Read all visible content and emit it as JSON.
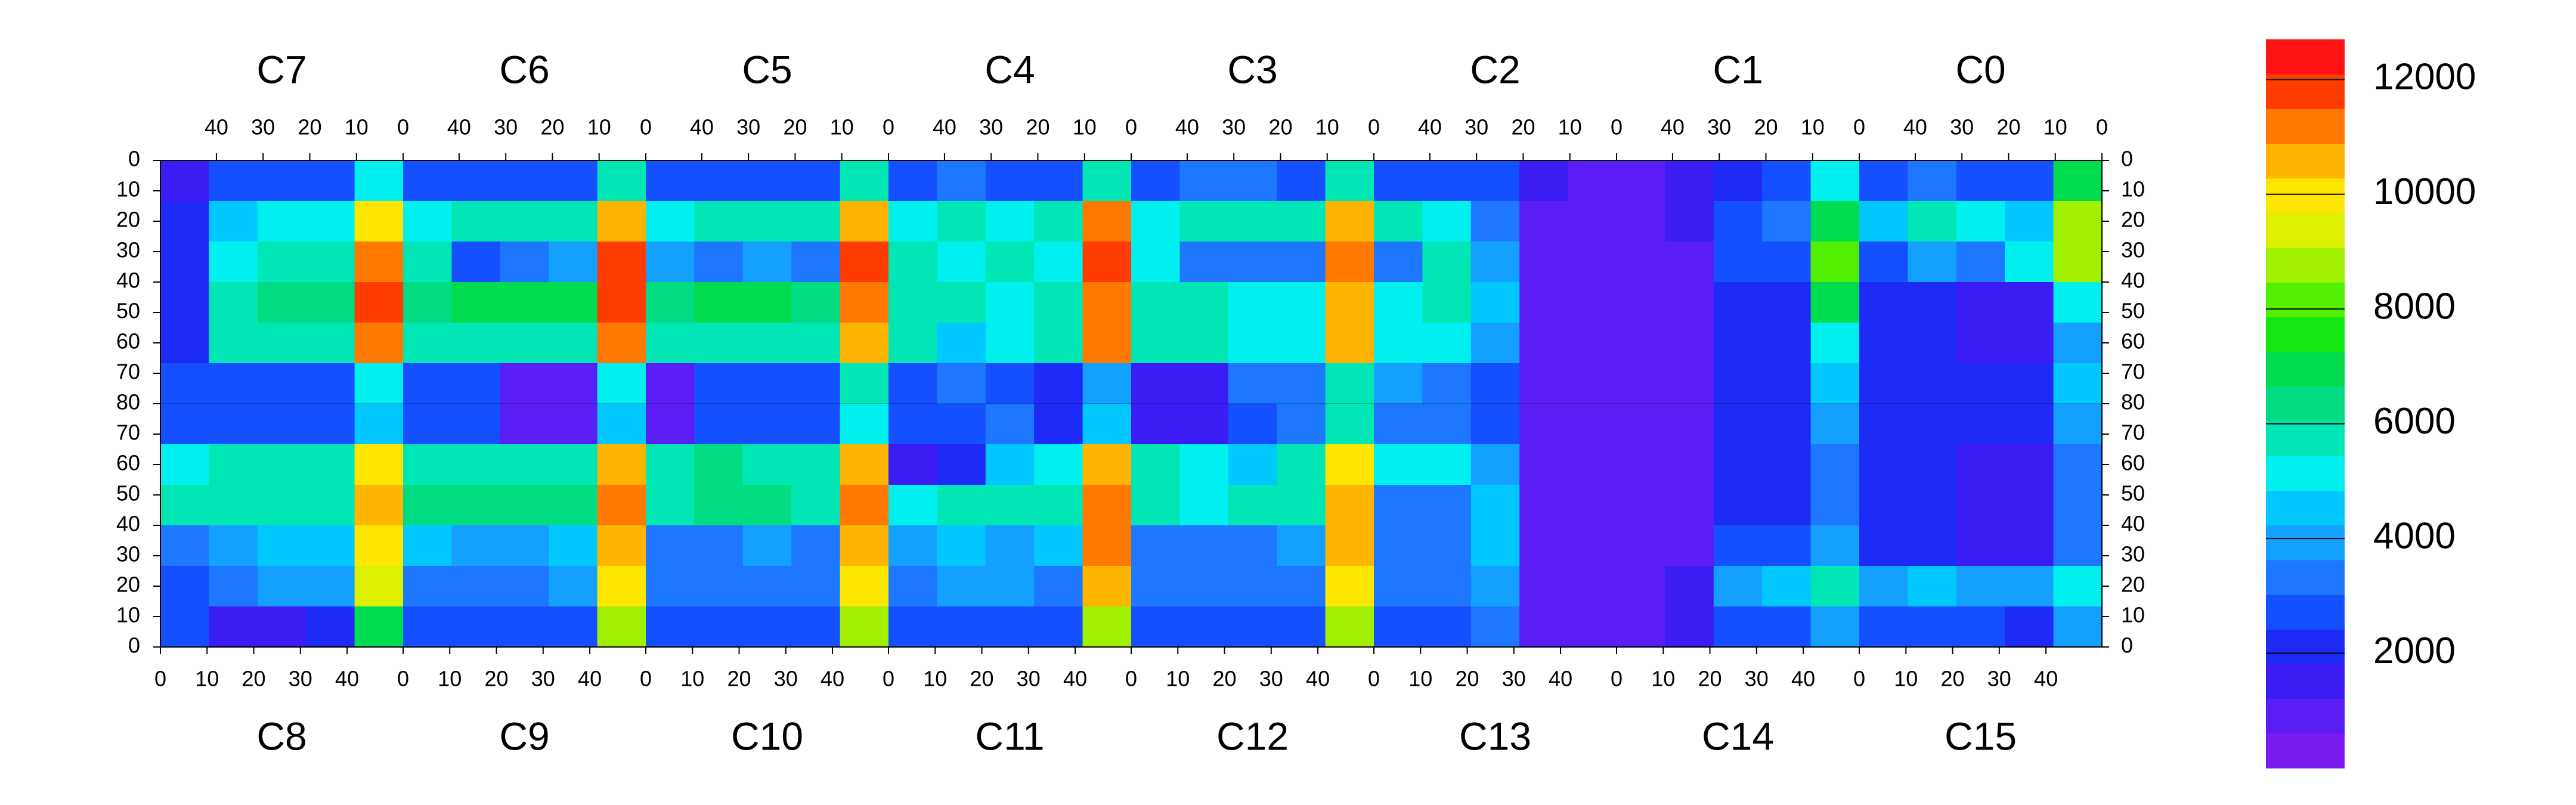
{
  "chart_data": {
    "type": "heatmap",
    "top_chips": [
      "C7",
      "C6",
      "C5",
      "C4",
      "C3",
      "C2",
      "C1",
      "C0"
    ],
    "bottom_chips": [
      "C8",
      "C9",
      "C10",
      "C11",
      "C12",
      "C13",
      "C14",
      "C15"
    ],
    "chip_xlim": [
      0,
      52
    ],
    "top_xticks": [
      40,
      30,
      20,
      10,
      0
    ],
    "bottom_xticks": [
      0,
      10,
      20,
      30,
      40
    ],
    "ylim": [
      0,
      80
    ],
    "yticks": [
      0,
      10,
      20,
      30,
      40,
      50,
      60,
      70,
      80
    ],
    "zlim": [
      0,
      12700
    ],
    "zticks": [
      2000,
      4000,
      6000,
      8000,
      10000,
      12000
    ],
    "palette": [
      "#7b1cf0",
      "#5a1ef5",
      "#3c1cf5",
      "#1e2af5",
      "#1450ff",
      "#1e78ff",
      "#14a0ff",
      "#00c8ff",
      "#00f0f0",
      "#00e6b4",
      "#00dc82",
      "#00dc50",
      "#14e614",
      "#50f000",
      "#a0f000",
      "#dcf000",
      "#ffe600",
      "#ffb400",
      "#ff7800",
      "#ff3c00",
      "#ff1414"
    ],
    "values": [
      [
        1500,
        2500,
        3000,
        3000,
        5000,
        2500,
        3000,
        3000,
        3000,
        6000,
        2500,
        3000,
        3000,
        3000,
        6000,
        3000,
        3500,
        3000,
        3000,
        6000,
        3000,
        3500,
        3500,
        3000,
        6000,
        3000,
        3000,
        2500,
        1500,
        1000,
        1000,
        1500,
        2000,
        2500,
        5000,
        2500,
        3500,
        3000,
        2500,
        7000
      ],
      [
        2000,
        4500,
        5000,
        5000,
        10000,
        5000,
        5500,
        5500,
        5500,
        10500,
        5000,
        5500,
        5500,
        6000,
        10500,
        5000,
        5500,
        5000,
        5500,
        11000,
        5000,
        5500,
        5500,
        5500,
        10500,
        5500,
        5000,
        3500,
        1000,
        800,
        800,
        1500,
        3000,
        3500,
        7000,
        4500,
        5500,
        5000,
        4500,
        9000
      ],
      [
        2000,
        5000,
        5500,
        5500,
        11000,
        5500,
        3000,
        3500,
        4000,
        11500,
        4000,
        3500,
        4000,
        3500,
        11500,
        5500,
        5000,
        5500,
        5000,
        11500,
        5000,
        3500,
        3500,
        3500,
        11000,
        3500,
        5500,
        4000,
        1000,
        800,
        800,
        1000,
        2500,
        3000,
        8000,
        3000,
        4000,
        3500,
        5000,
        9000
      ],
      [
        2000,
        6000,
        6500,
        6500,
        11500,
        6500,
        7000,
        7000,
        7000,
        11500,
        6500,
        7000,
        7000,
        6500,
        11000,
        6000,
        5500,
        5000,
        6000,
        11000,
        6000,
        6000,
        5000,
        5000,
        10500,
        5000,
        6000,
        4500,
        1000,
        800,
        800,
        1000,
        2000,
        2000,
        7000,
        2000,
        2000,
        1800,
        1800,
        5000
      ],
      [
        2000,
        5500,
        5500,
        5500,
        11000,
        6000,
        6000,
        6000,
        6000,
        11000,
        6000,
        6000,
        6000,
        6000,
        10500,
        5500,
        4500,
        5000,
        5500,
        11000,
        5500,
        5500,
        5000,
        5000,
        10500,
        5000,
        5000,
        4000,
        1000,
        800,
        800,
        1000,
        2000,
        2000,
        5000,
        2000,
        2000,
        1800,
        1800,
        4000
      ],
      [
        2500,
        2500,
        2500,
        2500,
        5000,
        2500,
        2500,
        1200,
        1200,
        5000,
        1200,
        2500,
        2500,
        2500,
        5500,
        2500,
        3500,
        3000,
        2000,
        4000,
        1500,
        1500,
        3500,
        3500,
        5500,
        4000,
        3500,
        3000,
        1000,
        800,
        800,
        1000,
        2000,
        2000,
        4500,
        2000,
        2000,
        2000,
        2000,
        4500
      ],
      [
        2500,
        2500,
        2500,
        2500,
        4500,
        2500,
        2500,
        1200,
        1200,
        4500,
        1200,
        2500,
        2500,
        2500,
        5000,
        3000,
        2500,
        3500,
        2000,
        4500,
        1500,
        1500,
        3000,
        3500,
        5500,
        3500,
        3500,
        3000,
        1000,
        800,
        800,
        1000,
        2000,
        2000,
        4000,
        2000,
        2000,
        2000,
        2000,
        4000
      ],
      [
        5000,
        5500,
        5500,
        5500,
        10000,
        6000,
        6000,
        6000,
        6000,
        10500,
        6000,
        6500,
        6000,
        5500,
        10500,
        1500,
        2000,
        4500,
        5000,
        10500,
        5500,
        5000,
        4500,
        5500,
        10000,
        5000,
        5000,
        4000,
        1000,
        800,
        800,
        1000,
        2000,
        2000,
        3500,
        2000,
        2000,
        1800,
        1800,
        3500
      ],
      [
        5500,
        6000,
        6000,
        6000,
        10500,
        6500,
        6500,
        6500,
        6500,
        11000,
        6000,
        6500,
        6500,
        6000,
        11000,
        5000,
        5500,
        5500,
        5500,
        11000,
        5500,
        5000,
        5500,
        5500,
        10500,
        3500,
        3500,
        4500,
        1000,
        800,
        800,
        1000,
        2000,
        2000,
        3500,
        2000,
        2000,
        1800,
        1800,
        3500
      ],
      [
        3500,
        4000,
        4500,
        4500,
        10000,
        4500,
        4000,
        4000,
        4500,
        10500,
        3500,
        3500,
        4000,
        3500,
        10500,
        4000,
        4500,
        4000,
        4500,
        11000,
        3500,
        3500,
        3500,
        4000,
        10500,
        3500,
        3500,
        4500,
        1000,
        800,
        800,
        1000,
        2500,
        2500,
        4000,
        2000,
        2000,
        1800,
        1800,
        3500
      ],
      [
        3000,
        3500,
        4000,
        4000,
        9500,
        3500,
        3500,
        3500,
        4000,
        10000,
        3500,
        3500,
        3500,
        3500,
        10000,
        3500,
        4000,
        4000,
        3500,
        10500,
        3500,
        3500,
        3500,
        3500,
        10000,
        3500,
        3500,
        4000,
        1000,
        800,
        800,
        1500,
        4000,
        4500,
        6000,
        4000,
        4500,
        4000,
        4000,
        5000
      ],
      [
        2500,
        1500,
        1500,
        2000,
        7000,
        2500,
        2500,
        2500,
        2500,
        9000,
        3000,
        3000,
        3000,
        3000,
        9000,
        3000,
        3000,
        3000,
        3000,
        9000,
        3000,
        3000,
        3000,
        3000,
        9000,
        3000,
        3000,
        3500,
        1000,
        800,
        800,
        1500,
        3000,
        3000,
        4000,
        3000,
        2500,
        2500,
        2000,
        4000
      ]
    ]
  }
}
